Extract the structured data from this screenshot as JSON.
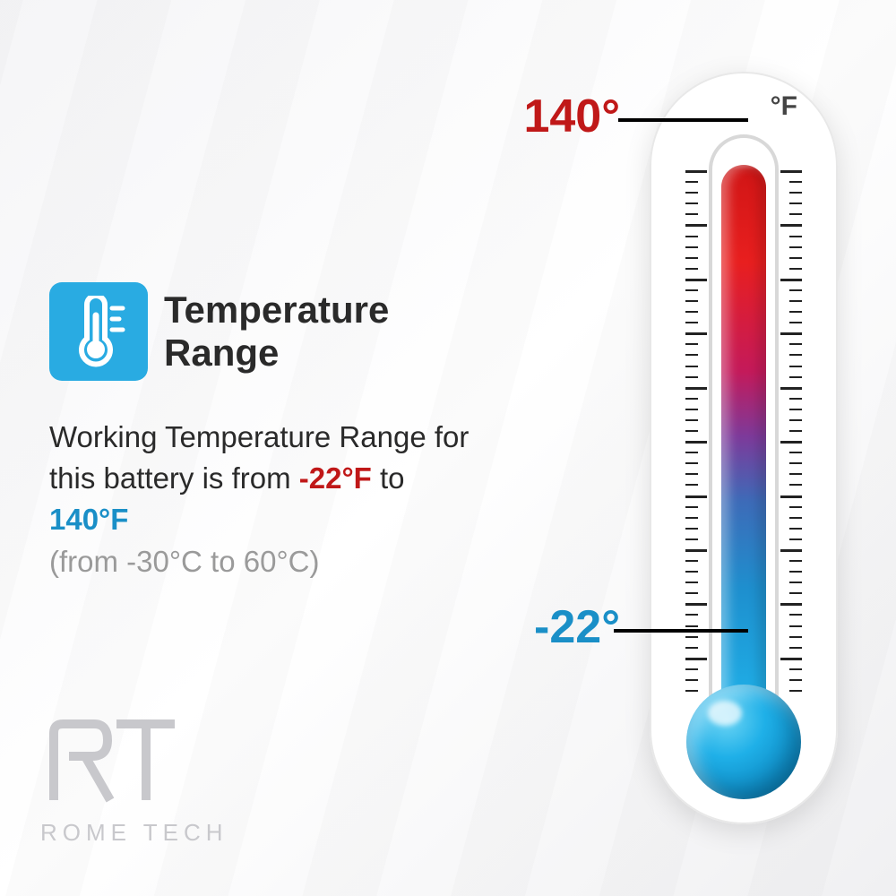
{
  "title": "Temperature\nRange",
  "description": {
    "prefix": "Working Temperature Range for this battery is from ",
    "low": "-22°F",
    "mid": " to ",
    "high": "140°F"
  },
  "celsius": "(from -30°C to 60°C)",
  "thermometer": {
    "unit": "°F",
    "high_label": "140°",
    "low_label": "-22°",
    "colors": {
      "hot": "#d01515",
      "cold": "#1fb0e8",
      "icon_bg": "#29abe2",
      "high_text": "#c01818",
      "low_text": "#1a8fc7"
    }
  },
  "logo": {
    "text": "ROME TECH"
  }
}
